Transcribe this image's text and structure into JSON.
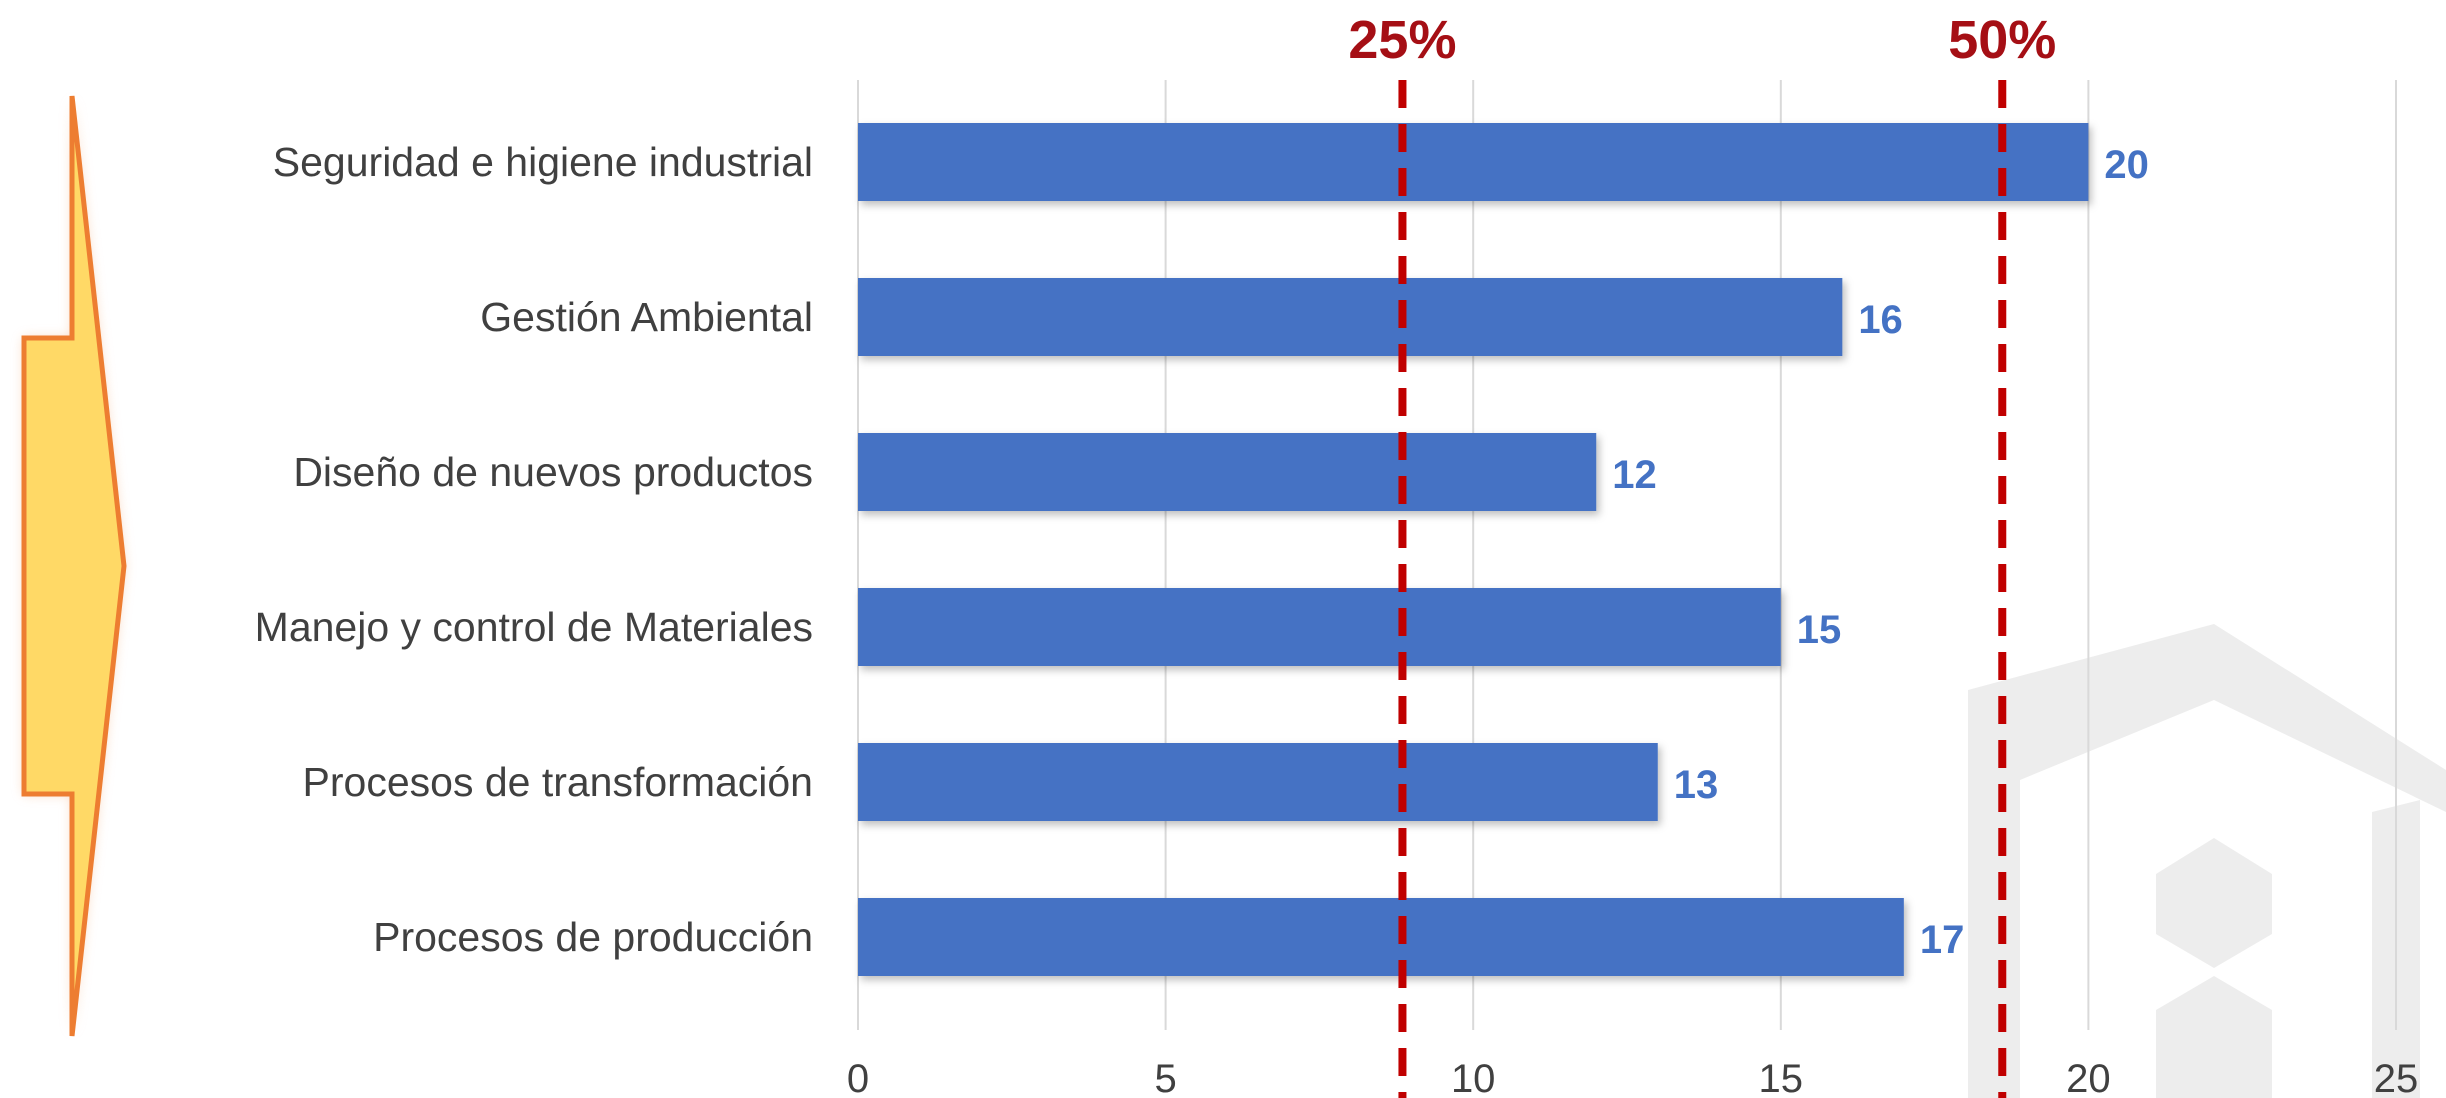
{
  "chart_data": {
    "type": "bar",
    "orientation": "horizontal",
    "categories": [
      "Seguridad e higiene industrial",
      "Gestión Ambiental",
      "Diseño de nuevos productos",
      "Manejo y control de Materiales",
      "Procesos de transformación",
      "Procesos de producción"
    ],
    "values": [
      20,
      16,
      12,
      15,
      13,
      17
    ],
    "xlim": [
      0,
      25
    ],
    "xticks": [
      "0",
      "5",
      "10",
      "15",
      "20",
      "25"
    ],
    "grid": true,
    "reference_lines": [
      {
        "label": "25%",
        "value": 8.85
      },
      {
        "label": "50%",
        "value": 18.6
      }
    ]
  },
  "colors": {
    "bar": "#4472C4",
    "value_label": "#4472C4",
    "reference_line": "#C00000",
    "reference_label": "#A50F15",
    "grid": "#D9D9D9",
    "arrow_fill": "#FFD966",
    "arrow_stroke": "#ED7D31",
    "watermark": "#EDEDED"
  }
}
